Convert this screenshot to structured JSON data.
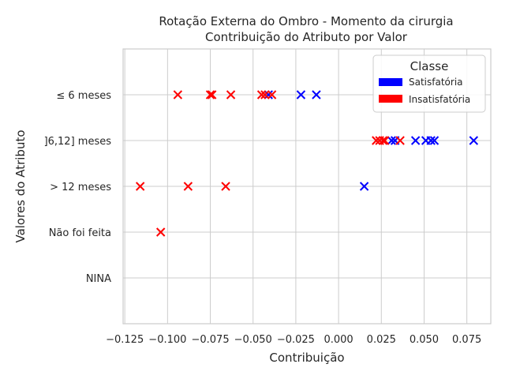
{
  "chart_data": {
    "type": "scatter",
    "title": [
      "Rotação Externa do Ombro - Momento da cirurgia",
      "Contribuição do Atributo por Valor"
    ],
    "xlabel": "Contribuição",
    "ylabel": "Valores do Atributo",
    "xlim": [
      -0.126,
      0.089
    ],
    "x_ticks": [
      -0.125,
      -0.1,
      -0.075,
      -0.05,
      -0.025,
      0.0,
      0.025,
      0.05,
      0.075
    ],
    "x_tick_labels": [
      "−0.125",
      "−0.100",
      "−0.075",
      "−0.050",
      "−0.025",
      "0.000",
      "0.025",
      "0.050",
      "0.075"
    ],
    "categories": [
      "≤ 6 meses",
      "]6,12] meses",
      "> 12 meses",
      "Não foi feita",
      "NINA"
    ],
    "grid": true,
    "marker": "x",
    "legend": {
      "title": "Classe",
      "placement": "top-right",
      "entries": [
        {
          "label": "Satisfatória",
          "color": "#0000ff"
        },
        {
          "label": "Insatisfatória",
          "color": "#ff0000"
        }
      ]
    },
    "series": [
      {
        "name": "Satisfatória",
        "color": "#0000ff",
        "points": [
          {
            "category": "≤ 6 meses",
            "x": -0.041
          },
          {
            "category": "≤ 6 meses",
            "x": -0.022
          },
          {
            "category": "≤ 6 meses",
            "x": -0.013
          },
          {
            "category": "]6,12] meses",
            "x": 0.031
          },
          {
            "category": "]6,12] meses",
            "x": 0.033
          },
          {
            "category": "]6,12] meses",
            "x": 0.045
          },
          {
            "category": "]6,12] meses",
            "x": 0.051
          },
          {
            "category": "]6,12] meses",
            "x": 0.054
          },
          {
            "category": "]6,12] meses",
            "x": 0.056
          },
          {
            "category": "]6,12] meses",
            "x": 0.079
          },
          {
            "category": "> 12 meses",
            "x": 0.015
          }
        ]
      },
      {
        "name": "Insatisfatória",
        "color": "#ff0000",
        "points": [
          {
            "category": "≤ 6 meses",
            "x": -0.094
          },
          {
            "category": "≤ 6 meses",
            "x": -0.075
          },
          {
            "category": "≤ 6 meses",
            "x": -0.074
          },
          {
            "category": "≤ 6 meses",
            "x": -0.063
          },
          {
            "category": "≤ 6 meses",
            "x": -0.045
          },
          {
            "category": "≤ 6 meses",
            "x": -0.043
          },
          {
            "category": "≤ 6 meses",
            "x": -0.039
          },
          {
            "category": "]6,12] meses",
            "x": 0.022
          },
          {
            "category": "]6,12] meses",
            "x": 0.024
          },
          {
            "category": "]6,12] meses",
            "x": 0.026
          },
          {
            "category": "]6,12] meses",
            "x": 0.027
          },
          {
            "category": "]6,12] meses",
            "x": 0.036
          },
          {
            "category": "> 12 meses",
            "x": -0.116
          },
          {
            "category": "> 12 meses",
            "x": -0.088
          },
          {
            "category": "> 12 meses",
            "x": -0.066
          },
          {
            "category": "Não foi feita",
            "x": -0.104
          }
        ]
      }
    ]
  }
}
